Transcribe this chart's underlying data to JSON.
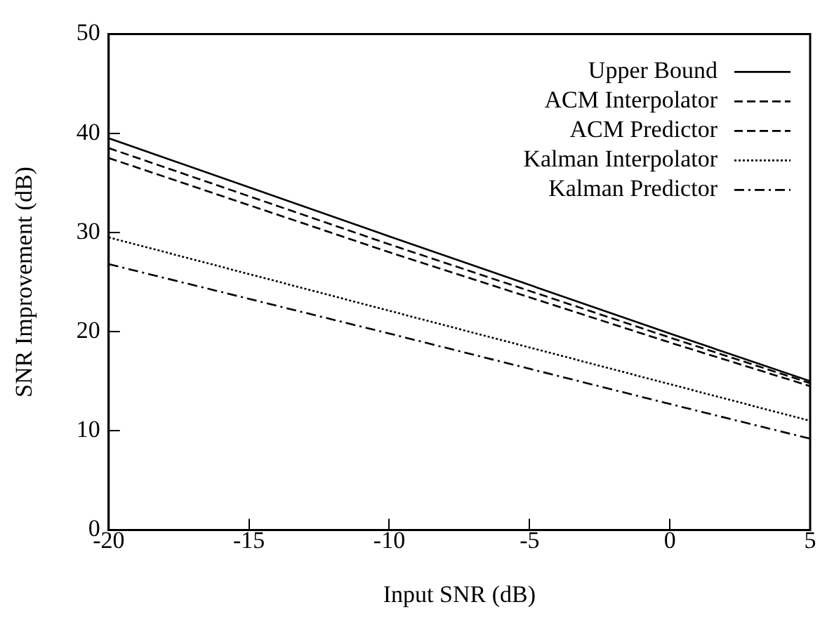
{
  "chart_data": {
    "type": "line",
    "xlabel": "Input SNR (dB)",
    "ylabel": "SNR Improvement (dB)",
    "x": [
      -20,
      -10,
      0,
      5
    ],
    "series": [
      {
        "name": "Upper Bound",
        "color": "#000000",
        "line_style": "solid",
        "values": [
          39.5,
          29.6,
          19.8,
          15
        ]
      },
      {
        "name": "ACM Interpolator",
        "color": "#000000",
        "line_style": "dashed",
        "values": [
          38.5,
          28.8,
          19.4,
          14.8
        ]
      },
      {
        "name": "ACM Predictor",
        "color": "#000000",
        "line_style": "dashed",
        "values": [
          37.5,
          28,
          18.9,
          14.5
        ]
      },
      {
        "name": "Kalman Interpolator",
        "color": "#000000",
        "line_style": "dotted",
        "values": [
          29.5,
          22.1,
          14.7,
          11
        ]
      },
      {
        "name": "Kalman Predictor",
        "color": "#000000",
        "line_style": "dashdot",
        "values": [
          26.8,
          19.8,
          12.7,
          9.2
        ]
      }
    ],
    "xlim": [
      -20,
      5
    ],
    "xticks": [
      -20,
      -15,
      -10,
      -5,
      0,
      5
    ],
    "ylim": [
      0,
      50
    ],
    "yticks": [
      0,
      10,
      20,
      30,
      40,
      50
    ],
    "grid": false,
    "legend": "top right",
    "marker": "none"
  }
}
